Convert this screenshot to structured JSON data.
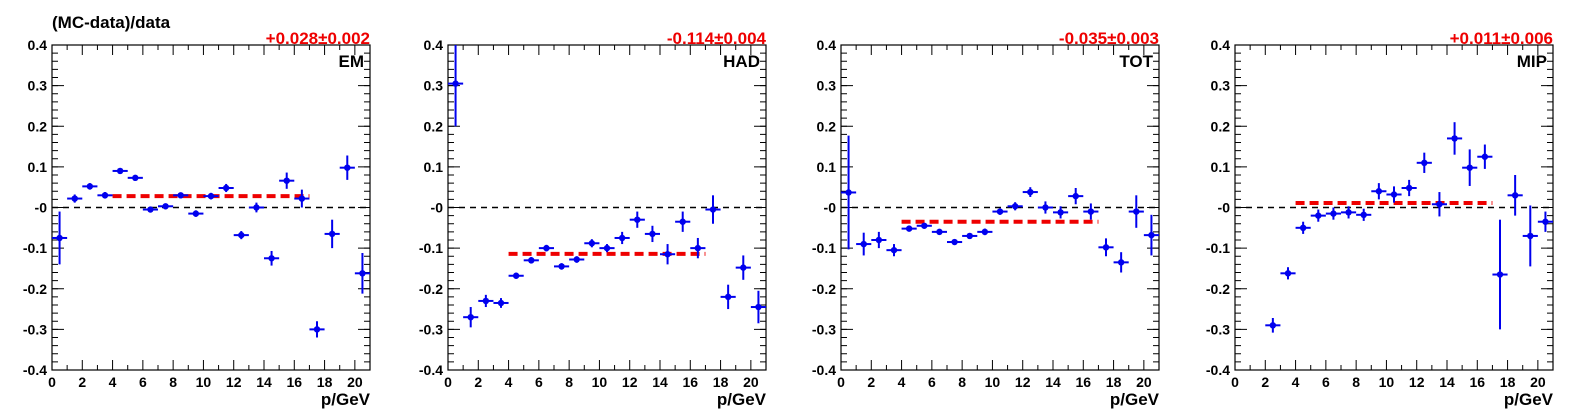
{
  "figure": {
    "ylabel": "(MC-data)/data",
    "xlabel": "p/GeV",
    "xticks": [
      0,
      2,
      4,
      6,
      8,
      10,
      12,
      14,
      16,
      18,
      20
    ],
    "yticks": [
      0.4,
      0.3,
      0.2,
      0.1,
      0,
      -0.1,
      -0.2,
      -0.3,
      -0.4
    ],
    "ytick_labels": [
      "0.4",
      "0.3",
      "0.2",
      "0.1",
      "-0",
      "-0.1",
      "-0.2",
      "-0.3",
      "-0.4"
    ],
    "colors": {
      "points": "#0000ee",
      "fit": "#ee0000",
      "reference": "#000000",
      "result_text": "#ee0000"
    }
  },
  "chart_data": [
    {
      "type": "scatter",
      "panel_label": "EM",
      "fit_result": "+0.028±0.002",
      "fit_value": 0.028,
      "fit_range": [
        4,
        17
      ],
      "xlim": [
        0,
        21
      ],
      "ylim": [
        -0.4,
        0.4
      ],
      "grid": false,
      "x": [
        0.5,
        1.5,
        2.5,
        3.5,
        4.5,
        5.5,
        6.5,
        7.5,
        8.5,
        9.5,
        10.5,
        11.5,
        12.5,
        13.5,
        14.5,
        15.5,
        16.5,
        17.5,
        18.5,
        19.5,
        20.5
      ],
      "y": [
        -0.075,
        0.022,
        0.052,
        0.03,
        0.09,
        0.073,
        -0.005,
        0.003,
        0.03,
        -0.015,
        0.028,
        0.048,
        -0.068,
        0.0,
        -0.125,
        0.066,
        0.022,
        -0.3,
        -0.065,
        0.098,
        -0.162
      ],
      "yerr": [
        0.065,
        0.01,
        0.008,
        0.008,
        0.007,
        0.007,
        0.007,
        0.007,
        0.007,
        0.008,
        0.008,
        0.01,
        0.01,
        0.012,
        0.018,
        0.02,
        0.022,
        0.02,
        0.035,
        0.03,
        0.05
      ]
    },
    {
      "type": "scatter",
      "panel_label": "HAD",
      "fit_result": "-0.114±0.004",
      "fit_value": -0.114,
      "fit_range": [
        4,
        17
      ],
      "xlim": [
        0,
        21
      ],
      "ylim": [
        -0.4,
        0.4
      ],
      "grid": false,
      "x": [
        0.5,
        1.5,
        2.5,
        3.5,
        4.5,
        5.5,
        6.5,
        7.5,
        8.5,
        9.5,
        10.5,
        11.5,
        12.5,
        13.5,
        14.5,
        15.5,
        16.5,
        17.5,
        18.5,
        19.5,
        20.5
      ],
      "y": [
        0.305,
        -0.27,
        -0.23,
        -0.235,
        -0.168,
        -0.13,
        -0.1,
        -0.145,
        -0.128,
        -0.088,
        -0.1,
        -0.075,
        -0.03,
        -0.065,
        -0.115,
        -0.035,
        -0.1,
        -0.005,
        -0.22,
        -0.148,
        -0.245
      ],
      "yerr": [
        0.105,
        0.025,
        0.015,
        0.012,
        0.007,
        0.008,
        0.008,
        0.008,
        0.008,
        0.01,
        0.01,
        0.015,
        0.02,
        0.02,
        0.025,
        0.025,
        0.025,
        0.035,
        0.03,
        0.03,
        0.04
      ]
    },
    {
      "type": "scatter",
      "panel_label": "TOT",
      "fit_result": "-0.035±0.003",
      "fit_value": -0.035,
      "fit_range": [
        4,
        17
      ],
      "xlim": [
        0,
        21
      ],
      "ylim": [
        -0.4,
        0.4
      ],
      "grid": false,
      "x": [
        0.5,
        1.5,
        2.5,
        3.5,
        4.5,
        5.5,
        6.5,
        7.5,
        8.5,
        9.5,
        10.5,
        11.5,
        12.5,
        13.5,
        14.5,
        15.5,
        16.5,
        17.5,
        18.5,
        19.5,
        20.5
      ],
      "y": [
        0.037,
        -0.09,
        -0.08,
        -0.105,
        -0.052,
        -0.045,
        -0.06,
        -0.085,
        -0.07,
        -0.06,
        -0.01,
        0.003,
        0.038,
        0.0,
        -0.012,
        0.028,
        -0.01,
        -0.098,
        -0.135,
        -0.01,
        -0.068
      ],
      "yerr": [
        0.14,
        0.028,
        0.02,
        0.015,
        0.007,
        0.006,
        0.006,
        0.006,
        0.006,
        0.008,
        0.008,
        0.01,
        0.012,
        0.015,
        0.015,
        0.02,
        0.02,
        0.022,
        0.025,
        0.04,
        0.05
      ]
    },
    {
      "type": "scatter",
      "panel_label": "MIP",
      "fit_result": "+0.011±0.006",
      "fit_value": 0.011,
      "fit_range": [
        4,
        17
      ],
      "xlim": [
        0,
        21
      ],
      "ylim": [
        -0.4,
        0.4
      ],
      "grid": false,
      "x": [
        2.5,
        3.5,
        4.5,
        5.5,
        6.5,
        7.5,
        8.5,
        9.5,
        10.5,
        11.5,
        12.5,
        13.5,
        14.5,
        15.5,
        16.5,
        17.5,
        18.5,
        19.5,
        20.5
      ],
      "y": [
        -0.29,
        -0.162,
        -0.05,
        -0.02,
        -0.015,
        -0.012,
        -0.018,
        0.04,
        0.032,
        0.048,
        0.11,
        0.008,
        0.17,
        0.098,
        0.125,
        -0.165,
        0.03,
        -0.07,
        -0.035
      ],
      "yerr": [
        0.018,
        0.015,
        0.015,
        0.015,
        0.015,
        0.015,
        0.015,
        0.02,
        0.02,
        0.02,
        0.025,
        0.03,
        0.04,
        0.045,
        0.03,
        0.135,
        0.05,
        0.075,
        0.025
      ]
    }
  ]
}
